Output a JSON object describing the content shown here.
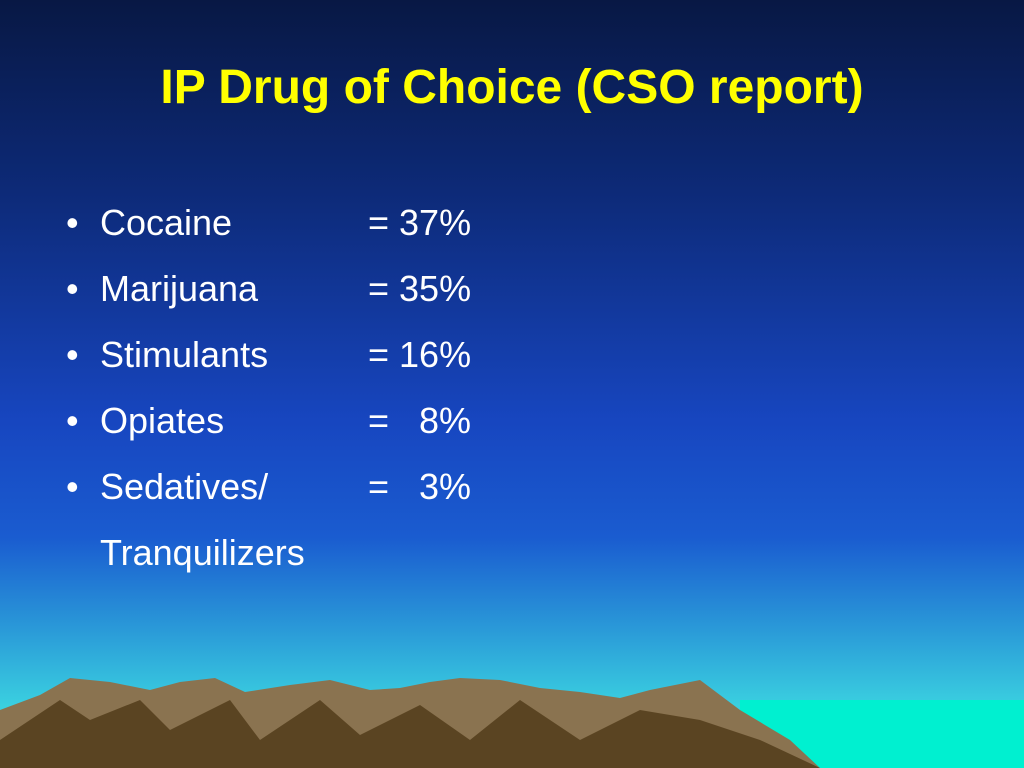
{
  "title": "IP Drug of Choice (CSO report)",
  "items": [
    {
      "label": "Cocaine",
      "value": "= 37%"
    },
    {
      "label": "Marijuana",
      "value": "= 35%"
    },
    {
      "label": "Stimulants",
      "value": "= 16%"
    },
    {
      "label": "Opiates",
      "value": "=   8%"
    },
    {
      "label": "Sedatives/\nTranquilizers",
      "value": "=   3%"
    }
  ]
}
